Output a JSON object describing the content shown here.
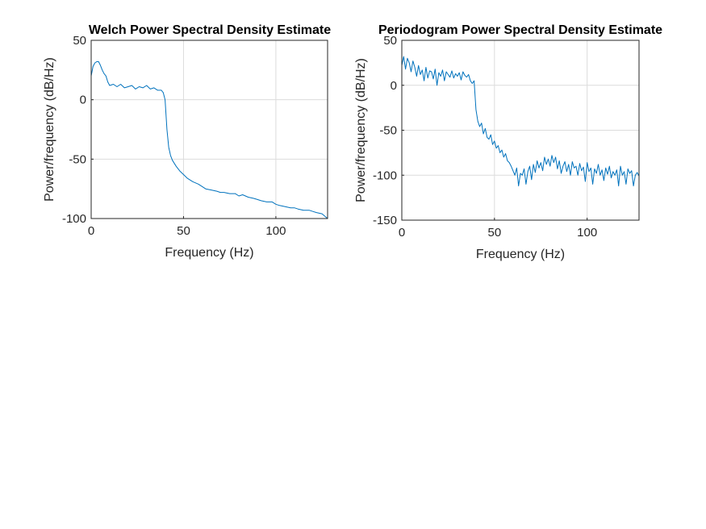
{
  "chart_data": [
    {
      "type": "line",
      "title": "Welch Power Spectral Density Estimate",
      "xlabel": "Frequency (Hz)",
      "ylabel": "Power/frequency (dB/Hz)",
      "xlim": [
        0,
        128
      ],
      "ylim": [
        -100,
        50
      ],
      "xticks": [
        0,
        50,
        100
      ],
      "yticks": [
        -100,
        -50,
        0,
        50
      ],
      "xtick_labels": [
        "0",
        "50",
        "100"
      ],
      "ytick_labels": [
        "-100",
        "-50",
        "0",
        "50"
      ],
      "grid": true,
      "color": "#0072BD",
      "x": [
        0,
        1,
        2,
        3,
        4,
        5,
        6,
        7,
        8,
        9,
        10,
        12,
        14,
        16,
        18,
        20,
        22,
        24,
        26,
        28,
        30,
        32,
        34,
        36,
        38,
        39,
        40,
        41,
        42,
        43,
        44,
        46,
        48,
        50,
        52,
        55,
        58,
        60,
        62,
        65,
        68,
        70,
        72,
        75,
        78,
        80,
        82,
        85,
        88,
        90,
        92,
        95,
        98,
        100,
        102,
        105,
        108,
        110,
        112,
        115,
        118,
        120,
        122,
        125,
        128
      ],
      "y": [
        20,
        28,
        31,
        32,
        32,
        29,
        25,
        22,
        20,
        15,
        12,
        13,
        11,
        13,
        10,
        11,
        12,
        9,
        11,
        10,
        12,
        9,
        10,
        8,
        8,
        6,
        0,
        -25,
        -40,
        -47,
        -51,
        -56,
        -60,
        -63,
        -66,
        -69,
        -71,
        -73,
        -75,
        -76,
        -77,
        -78,
        -78,
        -79,
        -79,
        -81,
        -80,
        -82,
        -83,
        -84,
        -85,
        -86,
        -86,
        -88,
        -89,
        -90,
        -91,
        -91,
        -92,
        -93,
        -93,
        -94,
        -95,
        -96,
        -100
      ]
    },
    {
      "type": "line",
      "title": "Periodogram Power Spectral Density Estimate",
      "xlabel": "Frequency (Hz)",
      "ylabel": "Power/frequency (dB/Hz)",
      "xlim": [
        0,
        128
      ],
      "ylim": [
        -150,
        50
      ],
      "xticks": [
        0,
        50,
        100
      ],
      "yticks": [
        -150,
        -100,
        -50,
        0,
        50
      ],
      "xtick_labels": [
        "0",
        "50",
        "100"
      ],
      "ytick_labels": [
        "-150",
        "-100",
        "-50",
        "0",
        "50"
      ],
      "grid": true,
      "color": "#0072BD",
      "x": [
        0,
        1,
        2,
        3,
        4,
        5,
        6,
        7,
        8,
        9,
        10,
        11,
        12,
        13,
        14,
        15,
        16,
        17,
        18,
        19,
        20,
        21,
        22,
        23,
        24,
        25,
        26,
        27,
        28,
        29,
        30,
        31,
        32,
        33,
        34,
        35,
        36,
        37,
        38,
        39,
        40,
        41,
        42,
        43,
        44,
        45,
        46,
        47,
        48,
        49,
        50,
        51,
        52,
        53,
        54,
        55,
        56,
        57,
        58,
        59,
        60,
        61,
        62,
        63,
        64,
        65,
        66,
        67,
        68,
        69,
        70,
        71,
        72,
        73,
        74,
        75,
        76,
        77,
        78,
        79,
        80,
        81,
        82,
        83,
        84,
        85,
        86,
        87,
        88,
        89,
        90,
        91,
        92,
        93,
        94,
        95,
        96,
        97,
        98,
        99,
        100,
        101,
        102,
        103,
        104,
        105,
        106,
        107,
        108,
        109,
        110,
        111,
        112,
        113,
        114,
        115,
        116,
        117,
        118,
        119,
        120,
        121,
        122,
        123,
        124,
        125,
        126,
        127,
        128
      ],
      "y": [
        22,
        32,
        18,
        30,
        25,
        15,
        27,
        20,
        10,
        22,
        12,
        17,
        5,
        20,
        8,
        16,
        15,
        7,
        18,
        0,
        14,
        10,
        17,
        5,
        15,
        12,
        9,
        16,
        8,
        13,
        10,
        14,
        6,
        15,
        11,
        9,
        12,
        5,
        2,
        5,
        -27,
        -40,
        -46,
        -42,
        -54,
        -48,
        -58,
        -60,
        -55,
        -66,
        -62,
        -70,
        -67,
        -75,
        -72,
        -80,
        -76,
        -84,
        -86,
        -90,
        -95,
        -100,
        -92,
        -112,
        -98,
        -100,
        -93,
        -110,
        -96,
        -90,
        -105,
        -88,
        -97,
        -84,
        -92,
        -86,
        -95,
        -80,
        -88,
        -82,
        -90,
        -78,
        -86,
        -80,
        -93,
        -84,
        -98,
        -90,
        -85,
        -96,
        -88,
        -100,
        -85,
        -92,
        -90,
        -100,
        -87,
        -95,
        -91,
        -107,
        -86,
        -96,
        -92,
        -110,
        -93,
        -98,
        -88,
        -100,
        -94,
        -106,
        -92,
        -99,
        -90,
        -103,
        -96,
        -100,
        -94,
        -112,
        -90,
        -100,
        -96,
        -110,
        -93,
        -98,
        -95,
        -112,
        -100,
        -97,
        -101
      ]
    }
  ]
}
